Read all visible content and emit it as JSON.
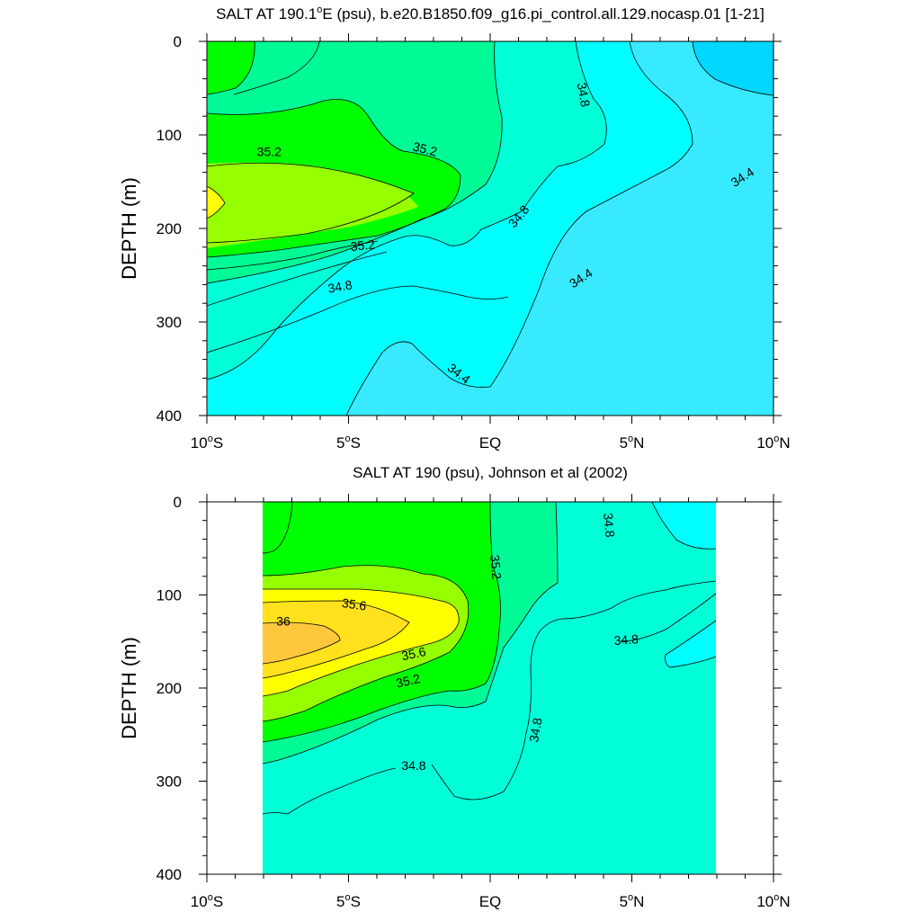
{
  "chart_data": [
    {
      "type": "heatmap",
      "subtype": "filled-contour",
      "title": "SALT AT 190.1",
      "title_deg": "o",
      "title_rest": "E (psu), b.e20.B1850.f09_g16.pi_control.all.129.nocasp.01 [1-21]",
      "xlabel": "",
      "ylabel": "DEPTH (m)",
      "xlim": [
        -10,
        10
      ],
      "ylim": [
        400,
        0
      ],
      "x_ticks": [
        {
          "v": -10,
          "num": "10",
          "deg": "o",
          "hemi": "S"
        },
        {
          "v": -5,
          "num": "5",
          "deg": "o",
          "hemi": "S"
        },
        {
          "v": 0,
          "num": "EQ",
          "deg": "",
          "hemi": ""
        },
        {
          "v": 5,
          "num": "5",
          "deg": "o",
          "hemi": "N"
        },
        {
          "v": 10,
          "num": "10",
          "deg": "o",
          "hemi": "N"
        }
      ],
      "y_ticks": [
        0,
        100,
        200,
        300,
        400
      ],
      "data_extent_x": [
        -10,
        10
      ],
      "contour_interval": 0.2,
      "contour_labels": [
        {
          "text": "35.2",
          "lat": -7.8,
          "depth": 118,
          "angle": 0
        },
        {
          "text": "35.2",
          "lat": -2.3,
          "depth": 115,
          "angle": 14
        },
        {
          "text": "35.2",
          "lat": -4.5,
          "depth": 218,
          "angle": -6
        },
        {
          "text": "34.8",
          "lat": -5.3,
          "depth": 262,
          "angle": -10
        },
        {
          "text": "34.8",
          "lat": 1.0,
          "depth": 187,
          "angle": -50
        },
        {
          "text": "34.8",
          "lat": 3.3,
          "depth": 57,
          "angle": 80
        },
        {
          "text": "34.4",
          "lat": 3.2,
          "depth": 253,
          "angle": -33
        },
        {
          "text": "34.4",
          "lat": 8.9,
          "depth": 145,
          "angle": -33
        },
        {
          "text": "34.4",
          "lat": -1.1,
          "depth": 355,
          "angle": 38
        }
      ]
    },
    {
      "type": "heatmap",
      "subtype": "filled-contour",
      "title": "SALT AT 190 (psu), Johnson et al (2002)",
      "xlabel": "",
      "ylabel": "DEPTH (m)",
      "xlim": [
        -10,
        10
      ],
      "ylim": [
        400,
        0
      ],
      "x_ticks": [
        {
          "v": -10,
          "num": "10",
          "deg": "o",
          "hemi": "S"
        },
        {
          "v": -5,
          "num": "5",
          "deg": "o",
          "hemi": "S"
        },
        {
          "v": 0,
          "num": "EQ",
          "deg": "",
          "hemi": ""
        },
        {
          "v": 5,
          "num": "5",
          "deg": "o",
          "hemi": "N"
        },
        {
          "v": 10,
          "num": "10",
          "deg": "o",
          "hemi": "N"
        }
      ],
      "y_ticks": [
        0,
        100,
        200,
        300,
        400
      ],
      "data_extent_x": [
        -8,
        8
      ],
      "contour_interval": 0.2,
      "contour_labels": [
        {
          "text": "36",
          "lat": -7.3,
          "depth": 128,
          "angle": 0
        },
        {
          "text": "35.6",
          "lat": -4.8,
          "depth": 110,
          "angle": 8
        },
        {
          "text": "35.6",
          "lat": -2.7,
          "depth": 163,
          "angle": -12
        },
        {
          "text": "35.2",
          "lat": -2.9,
          "depth": 192,
          "angle": -12
        },
        {
          "text": "35.2",
          "lat": 0.2,
          "depth": 70,
          "angle": 85
        },
        {
          "text": "34.8",
          "lat": 4.2,
          "depth": 25,
          "angle": 85
        },
        {
          "text": "34.8",
          "lat": 4.8,
          "depth": 148,
          "angle": -4
        },
        {
          "text": "34.8",
          "lat": 1.6,
          "depth": 245,
          "angle": -80
        },
        {
          "text": "34.8",
          "lat": -2.7,
          "depth": 283,
          "angle": 0
        }
      ]
    }
  ],
  "colors": {
    "lt_34_4": "#00d7ff",
    "c34_4_34_6": "#38eaff",
    "c34_6_34_8": "#00ffff",
    "c34_8_35_0": "#00ffd7",
    "c35_0_35_2": "#00fa96",
    "c35_2_35_4": "#00ff00",
    "c35_4_35_6": "#96ff00",
    "c35_6_35_8": "#ffff00",
    "c35_8_36_0": "#ffe11e",
    "gt_36_0": "#ffc83c"
  }
}
